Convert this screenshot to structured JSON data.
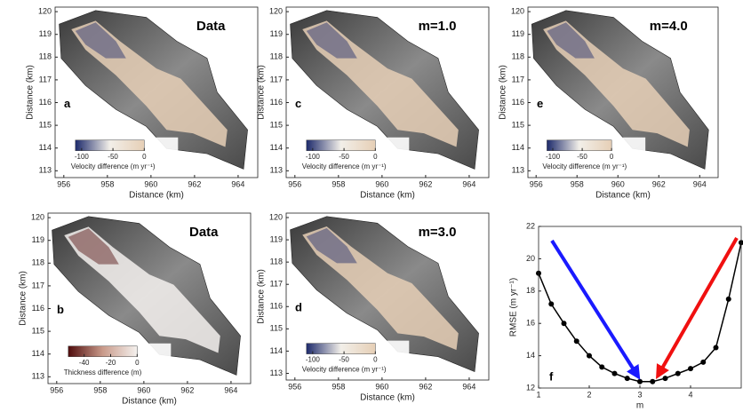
{
  "chart_data": [
    {
      "type": "map",
      "title": "Data",
      "panel_label": "a",
      "xlabel": "Distance (km)",
      "ylabel": "Distance (km)",
      "xlim": [
        955.6,
        964.9
      ],
      "ylim": [
        112.7,
        120.2
      ],
      "xticks": [
        956,
        958,
        960,
        962,
        964
      ],
      "yticks": [
        113,
        114,
        115,
        116,
        117,
        118,
        119,
        120
      ],
      "colorbar_label": "Velocity difference (m yr⁻¹)",
      "colorbar_lim": [
        -110,
        0
      ],
      "colorbar_ticks": [
        -100,
        -50,
        0
      ],
      "colormap": [
        "#1d2a6b",
        "#f2efe9",
        "#e6cfb6"
      ]
    },
    {
      "type": "map",
      "title": "m=1.0",
      "panel_label": "c",
      "xlabel": "Distance (km)",
      "ylabel": "Distance (km)",
      "xlim": [
        955.6,
        964.9
      ],
      "ylim": [
        112.7,
        120.2
      ],
      "xticks": [
        956,
        958,
        960,
        962,
        964
      ],
      "yticks": [
        113,
        114,
        115,
        116,
        117,
        118,
        119,
        120
      ],
      "colorbar_label": "Velocity difference (m yr⁻¹)",
      "colorbar_lim": [
        -110,
        0
      ],
      "colorbar_ticks": [
        -100,
        -50,
        0
      ],
      "colormap": [
        "#1d2a6b",
        "#f2efe9",
        "#e6cfb6"
      ]
    },
    {
      "type": "map",
      "title": "m=4.0",
      "panel_label": "e",
      "xlabel": "Distance (km)",
      "ylabel": "Distance (km)",
      "xlim": [
        955.6,
        964.9
      ],
      "ylim": [
        112.7,
        120.2
      ],
      "xticks": [
        956,
        958,
        960,
        962,
        964
      ],
      "yticks": [
        113,
        114,
        115,
        116,
        117,
        118,
        119,
        120
      ],
      "colorbar_label": "Velocity difference (m yr⁻¹)",
      "colorbar_lim": [
        -110,
        0
      ],
      "colorbar_ticks": [
        -100,
        -50,
        0
      ],
      "colormap": [
        "#1d2a6b",
        "#f2efe9",
        "#e6cfb6"
      ]
    },
    {
      "type": "map",
      "title": "Data",
      "panel_label": "b",
      "xlabel": "Distance (km)",
      "ylabel": "Distance (km)",
      "xlim": [
        955.6,
        964.9
      ],
      "ylim": [
        112.7,
        120.2
      ],
      "xticks": [
        956,
        958,
        960,
        962,
        964
      ],
      "yticks": [
        113,
        114,
        115,
        116,
        117,
        118,
        119,
        120
      ],
      "colorbar_label": "Thickness difference (m)",
      "colorbar_lim": [
        -52,
        0
      ],
      "colorbar_ticks": [
        -40,
        -20,
        0
      ],
      "colormap": [
        "#4f0c0c",
        "#c99a8a",
        "#f4f1ee"
      ]
    },
    {
      "type": "map",
      "title": "m=3.0",
      "panel_label": "d",
      "xlabel": "Distance (km)",
      "ylabel": "Distance (km)",
      "xlim": [
        955.6,
        964.9
      ],
      "ylim": [
        112.7,
        120.2
      ],
      "xticks": [
        956,
        958,
        960,
        962,
        964
      ],
      "yticks": [
        113,
        114,
        115,
        116,
        117,
        118,
        119,
        120
      ],
      "colorbar_label": "Velocity difference (m yr⁻¹)",
      "colorbar_lim": [
        -110,
        0
      ],
      "colorbar_ticks": [
        -100,
        -50,
        0
      ],
      "colormap": [
        "#1d2a6b",
        "#f2efe9",
        "#e6cfb6"
      ]
    },
    {
      "type": "line",
      "panel_label": "f",
      "xlabel": "m",
      "ylabel": "RMSE (m yr⁻¹)",
      "xlim": [
        1,
        5
      ],
      "ylim": [
        12,
        22
      ],
      "xticks": [
        1,
        2,
        3,
        4
      ],
      "yticks": [
        12,
        14,
        16,
        18,
        20,
        22
      ],
      "grid": false,
      "color": "#000000",
      "x": [
        1,
        1.25,
        1.5,
        1.75,
        2,
        2.25,
        2.5,
        2.75,
        3,
        3.25,
        3.5,
        3.75,
        4,
        4.25,
        4.5,
        4.75,
        5
      ],
      "values": [
        19.1,
        17.2,
        16.0,
        14.9,
        14.0,
        13.3,
        12.9,
        12.6,
        12.4,
        12.4,
        12.6,
        12.9,
        13.2,
        13.6,
        14.5,
        17.5,
        21.0
      ]
    }
  ]
}
